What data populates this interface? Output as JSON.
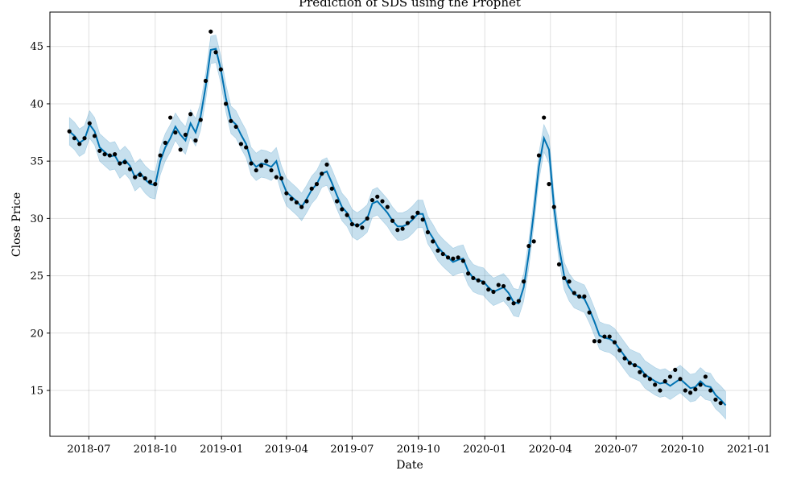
{
  "chart_data": {
    "type": "line",
    "title": "Prediction of SDS  using the Prophet",
    "xlabel": "Date",
    "ylabel": "Close Price",
    "xlim": [
      "2018-05-08",
      "2021-01-31"
    ],
    "ylim": [
      11.0,
      48.0
    ],
    "grid": true,
    "x_ticks": [
      "2018-07-01",
      "2018-10-01",
      "2019-01-01",
      "2019-04-01",
      "2019-07-01",
      "2019-10-01",
      "2020-01-01",
      "2020-04-01",
      "2020-07-01",
      "2020-10-01",
      "2021-01-01"
    ],
    "x_tick_labels": [
      "2018-07",
      "2018-10",
      "2019-01",
      "2019-04",
      "2019-07",
      "2019-10",
      "2020-01",
      "2020-04",
      "2020-07",
      "2020-10",
      "2021-01"
    ],
    "y_ticks": [
      15,
      20,
      25,
      30,
      35,
      40,
      45
    ],
    "y_tick_labels": [
      "15",
      "20",
      "25",
      "30",
      "35",
      "40",
      "45"
    ],
    "colors": {
      "forecast": "#0072B2",
      "band": "#0072B2",
      "actual": "#000000"
    },
    "band_width": 1.2,
    "series": [
      {
        "role": "forecast",
        "x": [
          "2018-06-04",
          "2018-06-11",
          "2018-06-18",
          "2018-06-25",
          "2018-07-02",
          "2018-07-09",
          "2018-07-16",
          "2018-07-23",
          "2018-07-30",
          "2018-08-06",
          "2018-08-13",
          "2018-08-20",
          "2018-08-27",
          "2018-09-03",
          "2018-09-10",
          "2018-09-17",
          "2018-09-24",
          "2018-10-01",
          "2018-10-08",
          "2018-10-15",
          "2018-10-22",
          "2018-10-29",
          "2018-11-05",
          "2018-11-12",
          "2018-11-19",
          "2018-11-26",
          "2018-12-03",
          "2018-12-10",
          "2018-12-17",
          "2018-12-24",
          "2018-12-31",
          "2019-01-07",
          "2019-01-14",
          "2019-01-21",
          "2019-01-28",
          "2019-02-04",
          "2019-02-11",
          "2019-02-18",
          "2019-02-25",
          "2019-03-04",
          "2019-03-11",
          "2019-03-18",
          "2019-03-25",
          "2019-04-01",
          "2019-04-08",
          "2019-04-15",
          "2019-04-22",
          "2019-04-29",
          "2019-05-06",
          "2019-05-13",
          "2019-05-20",
          "2019-05-27",
          "2019-06-03",
          "2019-06-10",
          "2019-06-17",
          "2019-06-24",
          "2019-07-01",
          "2019-07-08",
          "2019-07-15",
          "2019-07-22",
          "2019-07-29",
          "2019-08-05",
          "2019-08-12",
          "2019-08-19",
          "2019-08-26",
          "2019-09-02",
          "2019-09-09",
          "2019-09-16",
          "2019-09-23",
          "2019-09-30",
          "2019-10-07",
          "2019-10-14",
          "2019-10-21",
          "2019-10-28",
          "2019-11-04",
          "2019-11-11",
          "2019-11-18",
          "2019-11-25",
          "2019-12-02",
          "2019-12-09",
          "2019-12-16",
          "2019-12-23",
          "2019-12-30",
          "2020-01-06",
          "2020-01-13",
          "2020-01-20",
          "2020-01-27",
          "2020-02-03",
          "2020-02-10",
          "2020-02-17",
          "2020-02-24",
          "2020-03-02",
          "2020-03-09",
          "2020-03-16",
          "2020-03-23",
          "2020-03-30",
          "2020-04-06",
          "2020-04-13",
          "2020-04-20",
          "2020-04-27",
          "2020-05-04",
          "2020-05-11",
          "2020-05-18",
          "2020-05-25",
          "2020-06-01",
          "2020-06-08",
          "2020-06-15",
          "2020-06-22",
          "2020-06-29",
          "2020-07-06",
          "2020-07-13",
          "2020-07-20",
          "2020-07-27",
          "2020-08-03",
          "2020-08-10",
          "2020-08-17",
          "2020-08-24",
          "2020-08-31",
          "2020-09-07",
          "2020-09-14",
          "2020-09-21",
          "2020-09-28",
          "2020-10-05",
          "2020-10-12",
          "2020-10-19",
          "2020-10-26",
          "2020-11-02",
          "2020-11-09",
          "2020-11-16",
          "2020-11-23",
          "2020-11-30"
        ],
        "y": [
          37.6,
          37.2,
          36.6,
          36.9,
          38.2,
          37.6,
          36.2,
          35.8,
          35.4,
          35.5,
          34.7,
          35.1,
          34.6,
          33.6,
          34.0,
          33.4,
          33.0,
          32.9,
          35.0,
          36.2,
          37.0,
          38.0,
          37.3,
          36.8,
          38.3,
          37.5,
          38.9,
          41.5,
          44.7,
          44.8,
          43.0,
          40.5,
          38.6,
          38.2,
          37.3,
          36.5,
          35.0,
          34.5,
          34.8,
          34.7,
          34.5,
          35.0,
          33.4,
          32.3,
          31.9,
          31.5,
          31.0,
          31.7,
          32.5,
          33.0,
          33.9,
          34.1,
          33.1,
          32.0,
          31.0,
          30.5,
          29.6,
          29.3,
          29.6,
          30.0,
          31.3,
          31.5,
          31.0,
          30.5,
          29.8,
          29.3,
          29.3,
          29.5,
          29.9,
          30.4,
          30.4,
          29.0,
          28.3,
          27.5,
          27.0,
          26.6,
          26.2,
          26.4,
          26.5,
          25.4,
          24.8,
          24.6,
          24.5,
          24.0,
          23.6,
          23.8,
          24.0,
          23.5,
          22.7,
          22.6,
          24.0,
          26.9,
          30.5,
          34.5,
          37.0,
          36.0,
          31.0,
          27.5,
          25.0,
          24.0,
          23.4,
          23.2,
          23.0,
          22.1,
          21.0,
          19.8,
          19.6,
          19.5,
          19.2,
          18.6,
          18.0,
          17.4,
          17.2,
          17.0,
          16.4,
          16.1,
          15.8,
          15.6,
          15.7,
          15.4,
          15.7,
          16.0,
          15.6,
          15.2,
          15.3,
          15.8,
          15.4,
          15.3,
          14.6,
          14.2,
          13.7
        ]
      },
      {
        "role": "actual",
        "x": [
          "2018-06-04",
          "2018-06-11",
          "2018-06-18",
          "2018-06-25",
          "2018-07-02",
          "2018-07-09",
          "2018-07-16",
          "2018-07-23",
          "2018-07-30",
          "2018-08-06",
          "2018-08-13",
          "2018-08-20",
          "2018-08-27",
          "2018-09-03",
          "2018-09-10",
          "2018-09-17",
          "2018-09-24",
          "2018-10-01",
          "2018-10-08",
          "2018-10-15",
          "2018-10-22",
          "2018-10-29",
          "2018-11-05",
          "2018-11-12",
          "2018-11-19",
          "2018-11-26",
          "2018-12-03",
          "2018-12-10",
          "2018-12-17",
          "2018-12-24",
          "2018-12-31",
          "2019-01-07",
          "2019-01-14",
          "2019-01-21",
          "2019-01-28",
          "2019-02-04",
          "2019-02-11",
          "2019-02-18",
          "2019-02-25",
          "2019-03-04",
          "2019-03-11",
          "2019-03-18",
          "2019-03-25",
          "2019-04-01",
          "2019-04-08",
          "2019-04-15",
          "2019-04-22",
          "2019-04-29",
          "2019-05-06",
          "2019-05-13",
          "2019-05-20",
          "2019-05-27",
          "2019-06-03",
          "2019-06-10",
          "2019-06-17",
          "2019-06-24",
          "2019-07-01",
          "2019-07-08",
          "2019-07-15",
          "2019-07-22",
          "2019-07-29",
          "2019-08-05",
          "2019-08-12",
          "2019-08-19",
          "2019-08-26",
          "2019-09-02",
          "2019-09-09",
          "2019-09-16",
          "2019-09-23",
          "2019-09-30",
          "2019-10-07",
          "2019-10-14",
          "2019-10-21",
          "2019-10-28",
          "2019-11-04",
          "2019-11-11",
          "2019-11-18",
          "2019-11-25",
          "2019-12-02",
          "2019-12-09",
          "2019-12-16",
          "2019-12-23",
          "2019-12-30",
          "2020-01-06",
          "2020-01-13",
          "2020-01-20",
          "2020-01-27",
          "2020-02-03",
          "2020-02-10",
          "2020-02-17",
          "2020-02-24",
          "2020-03-02",
          "2020-03-09",
          "2020-03-16",
          "2020-03-23",
          "2020-03-30",
          "2020-04-06",
          "2020-04-13",
          "2020-04-20",
          "2020-04-27",
          "2020-05-04",
          "2020-05-11",
          "2020-05-18",
          "2020-05-25",
          "2020-06-01",
          "2020-06-08",
          "2020-06-15",
          "2020-06-22",
          "2020-06-29",
          "2020-07-06",
          "2020-07-13",
          "2020-07-20",
          "2020-07-27",
          "2020-08-03",
          "2020-08-10",
          "2020-08-17",
          "2020-08-24",
          "2020-08-31",
          "2020-09-07",
          "2020-09-14",
          "2020-09-21",
          "2020-09-28",
          "2020-10-05",
          "2020-10-12",
          "2020-10-19",
          "2020-10-26",
          "2020-11-02",
          "2020-11-09",
          "2020-11-16",
          "2020-11-23"
        ],
        "y": [
          37.6,
          37.0,
          36.5,
          37.0,
          38.3,
          37.2,
          35.9,
          35.6,
          35.5,
          35.6,
          34.8,
          34.9,
          34.3,
          33.6,
          33.8,
          33.5,
          33.2,
          33.0,
          35.5,
          36.6,
          38.8,
          37.5,
          36.0,
          37.3,
          39.1,
          36.8,
          38.6,
          42.0,
          46.3,
          44.5,
          43.0,
          40.0,
          38.5,
          38.0,
          36.5,
          36.2,
          34.8,
          34.2,
          34.6,
          35.0,
          34.2,
          33.6,
          33.5,
          32.2,
          31.7,
          31.4,
          31.0,
          31.5,
          32.6,
          33.0,
          33.9,
          34.7,
          32.6,
          31.5,
          30.8,
          30.3,
          29.5,
          29.4,
          29.2,
          30.0,
          31.6,
          31.9,
          31.5,
          31.0,
          29.8,
          29.0,
          29.1,
          29.6,
          30.1,
          30.5,
          29.9,
          28.8,
          28.0,
          27.2,
          26.9,
          26.6,
          26.5,
          26.6,
          26.3,
          25.2,
          24.8,
          24.6,
          24.4,
          23.8,
          23.6,
          24.2,
          24.1,
          23.0,
          22.6,
          22.8,
          24.5,
          27.6,
          28.0,
          35.5,
          38.8,
          33.0,
          31.0,
          26.0,
          24.8,
          24.5,
          23.5,
          23.2,
          23.2,
          21.8,
          19.3,
          19.3,
          19.7,
          19.7,
          19.2,
          18.5,
          17.8,
          17.4,
          17.2,
          16.6,
          16.3,
          16.0,
          15.5,
          15.0,
          15.8,
          16.2,
          16.8,
          16.0,
          15.0,
          14.8,
          15.1,
          15.5,
          16.2,
          15.0,
          14.2,
          13.9
        ]
      }
    ]
  }
}
